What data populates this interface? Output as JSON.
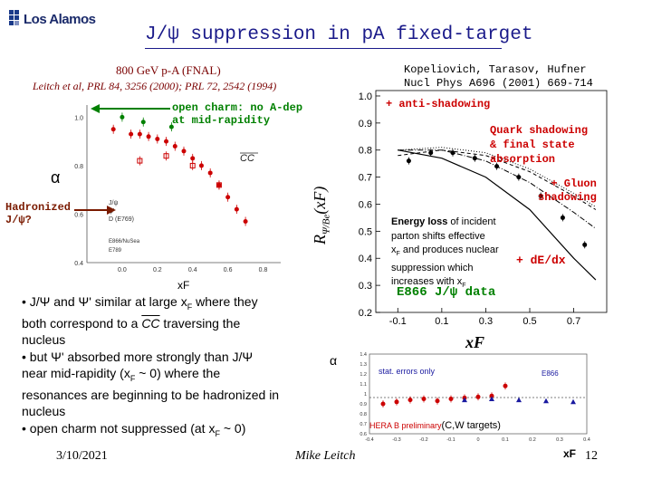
{
  "logo": {
    "text": "Los Alamos"
  },
  "slide": {
    "title": "J/ψ suppression in pA fixed-target",
    "date": "3/10/2021",
    "author": "Mike Leitch",
    "page_number": "12"
  },
  "left_chart": {
    "heading_line1": "800 GeV p-A (FNAL)",
    "heading_line2": "Leitch et al, PRL 84, 3256 (2000); PRL 72, 2542 (1994)",
    "ylabel": "α",
    "xlabel": "xF",
    "open_charm_note_line1": "open charm: no A-dep",
    "open_charm_note_line2": "at mid-rapidity",
    "hadronized_line1": "Hadronized",
    "hadronized_line2": "J/ψ?",
    "cc_label": "CC",
    "tick_labels_y": [
      "1.0",
      "0.8",
      "0.6",
      "0.4"
    ],
    "tick_labels_x": [
      "0.0",
      "0.2",
      "0.4",
      "0.6",
      "0.8"
    ],
    "legend": [
      "J/ψ",
      "ψ'",
      "D (E769)",
      "E866/NuSea",
      "E789"
    ]
  },
  "bullets": {
    "b1_pre": "• J/Ψ and Ψ' similar at large x",
    "b1_sub": "F",
    "b1_post": " where they",
    "b2_pre": "both correspond to a ",
    "b2_cc": "CC",
    "b2_post": " traversing the",
    "b3": "nucleus",
    "b4": "• but Ψ' absorbed more strongly than J/Ψ",
    "b5_pre": "near mid-rapidity (x",
    "b5_sub": "F",
    "b5_post": " ~ 0) where the",
    "b6": "resonances are beginning to be hadronized in",
    "b7": "nucleus",
    "b8_pre": "• open charm not suppressed (at x",
    "b8_sub": "F",
    "b8_post": " ~ 0)"
  },
  "right_chart": {
    "ref_line1": "Kopeliovich, Tarasov, Hufner",
    "ref_line2": "Nucl Phys A696 (2001) 669-714",
    "ylabel_main": "R",
    "ylabel_sub": "Ψ/Be",
    "ylabel_arg": "(xF)",
    "xlabel": "xF",
    "anti_shadowing": "+ anti-shadowing",
    "quark_line1": "Quark shadowing",
    "quark_line2": "& final state",
    "quark_line3": "absorption",
    "gluon_line1": "+ Gluon",
    "gluon_line2": "shadowing",
    "eloss_bold": "Energy loss",
    "eloss_line1_rest": " of incident",
    "eloss_line2": "parton shifts effective",
    "eloss_line3": "x",
    "eloss_line3_rest": " and produces nuclear",
    "eloss_line4": "suppression which",
    "eloss_line5": "increases with x",
    "plus_de_dx": "+ dE/dx",
    "e866_label": "E866 J/ψ data",
    "tick_labels_y": [
      "1.0",
      "0.9",
      "0.8",
      "0.7",
      "0.6",
      "0.5",
      "0.4",
      "0.3",
      "0.2"
    ],
    "tick_labels_x": [
      "-0.1",
      "0.1",
      "0.3",
      "0.5",
      "0.7"
    ]
  },
  "bottom_chart": {
    "ylabel": "α",
    "xlabel": "xF",
    "stat_errors": "stat. errors only",
    "e866_tag": "E866",
    "hera_label": "HERA B preliminary",
    "targets_label": "(C,W targets)",
    "tick_labels_y": [
      "1.4",
      "1.3",
      "1.2",
      "1.1",
      "1",
      "0.9",
      "0.8",
      "0.7",
      "0.6"
    ],
    "tick_labels_x": [
      "-0.4",
      "-0.3",
      "-0.2",
      "-0.1",
      "0",
      "0.1",
      "0.2",
      "0.3",
      "0.4"
    ]
  },
  "chart_data": [
    {
      "type": "scatter",
      "title": "800 GeV p-A (FNAL)",
      "xlabel": "xF",
      "ylabel": "α",
      "xlim": [
        -0.2,
        0.9
      ],
      "ylim": [
        0.4,
        1.05
      ],
      "series": [
        {
          "name": "J/ψ",
          "x": [
            -0.05,
            0.05,
            0.1,
            0.15,
            0.2,
            0.25,
            0.3,
            0.35,
            0.4,
            0.45,
            0.5,
            0.55,
            0.6,
            0.65,
            0.7
          ],
          "y": [
            0.95,
            0.93,
            0.93,
            0.92,
            0.91,
            0.9,
            0.88,
            0.86,
            0.83,
            0.8,
            0.77,
            0.72,
            0.67,
            0.62,
            0.57
          ]
        },
        {
          "name": "ψ'",
          "x": [
            0.1,
            0.25,
            0.4,
            0.55
          ],
          "y": [
            0.82,
            0.84,
            0.8,
            0.72
          ]
        },
        {
          "name": "D (E769)",
          "x": [
            0.0,
            0.12,
            0.28
          ],
          "y": [
            1.0,
            0.98,
            0.96
          ]
        }
      ]
    },
    {
      "type": "line",
      "title": "Kopeliovich, Tarasov, Hufner",
      "xlabel": "xF",
      "ylabel": "RΨ/Be(xF)",
      "xlim": [
        -0.2,
        0.85
      ],
      "ylim": [
        0.2,
        1.02
      ],
      "series": [
        {
          "name": "Quark shadowing & final state absorption",
          "x": [
            -0.1,
            0.1,
            0.3,
            0.5,
            0.7,
            0.8
          ],
          "y": [
            0.78,
            0.8,
            0.78,
            0.72,
            0.63,
            0.58
          ]
        },
        {
          "name": "+ anti-shadowing",
          "x": [
            -0.1,
            0.1,
            0.3,
            0.5,
            0.7,
            0.8
          ],
          "y": [
            0.8,
            0.81,
            0.79,
            0.73,
            0.64,
            0.59
          ]
        },
        {
          "name": "+ Gluon shadowing",
          "x": [
            -0.1,
            0.1,
            0.3,
            0.5,
            0.7,
            0.8
          ],
          "y": [
            0.8,
            0.8,
            0.76,
            0.68,
            0.57,
            0.51
          ]
        },
        {
          "name": "+ dE/dx",
          "x": [
            -0.1,
            0.1,
            0.3,
            0.5,
            0.7,
            0.8
          ],
          "y": [
            0.8,
            0.77,
            0.7,
            0.58,
            0.4,
            0.32
          ]
        },
        {
          "name": "E866 J/ψ data",
          "x": [
            -0.05,
            0.05,
            0.15,
            0.25,
            0.35,
            0.45,
            0.55,
            0.65,
            0.75
          ],
          "y": [
            0.76,
            0.79,
            0.79,
            0.77,
            0.74,
            0.7,
            0.63,
            0.55,
            0.45
          ]
        }
      ]
    },
    {
      "type": "scatter",
      "title": "HERA B preliminary (C,W targets)",
      "xlabel": "xF",
      "ylabel": "α",
      "xlim": [
        -0.4,
        0.4
      ],
      "ylim": [
        0.6,
        1.4
      ],
      "series": [
        {
          "name": "HERA B",
          "x": [
            -0.35,
            -0.3,
            -0.25,
            -0.2,
            -0.15,
            -0.1,
            -0.05,
            0.0,
            0.05,
            0.1
          ],
          "y": [
            0.9,
            0.92,
            0.94,
            0.95,
            0.93,
            0.95,
            0.96,
            0.97,
            0.98,
            1.08
          ]
        },
        {
          "name": "E866",
          "x": [
            -0.05,
            0.05,
            0.15,
            0.25,
            0.35
          ],
          "y": [
            0.94,
            0.95,
            0.94,
            0.93,
            0.92
          ]
        }
      ]
    }
  ]
}
